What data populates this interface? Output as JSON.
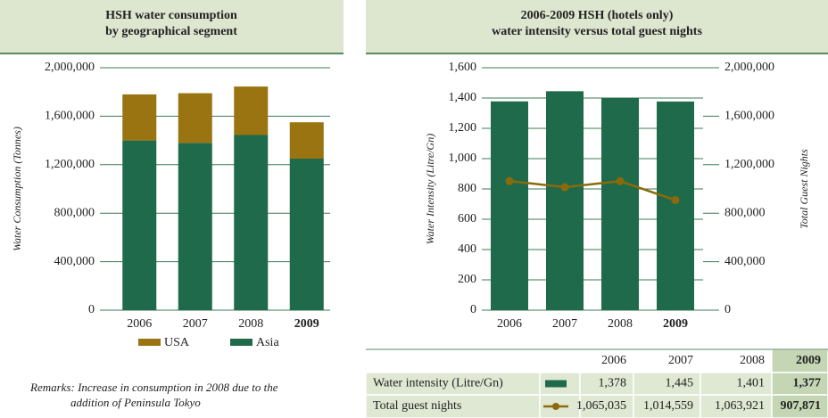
{
  "chart_data": [
    {
      "type": "stacked_bar",
      "title": [
        "HSH water consumption",
        "by geographical segment"
      ],
      "y_label": "Water Consumption (Tonnes)",
      "categories": [
        "2006",
        "2007",
        "2008",
        "2009"
      ],
      "highlight": 3,
      "series": [
        {
          "name": "Asia",
          "color": "#1f6a4a",
          "values": [
            1400000,
            1380000,
            1445000,
            1250000
          ]
        },
        {
          "name": "USA",
          "color": "#9a7410",
          "values": [
            380000,
            410000,
            400000,
            300000
          ]
        }
      ],
      "ylim": [
        0,
        2000000
      ],
      "yticks": [
        0,
        {
          "value": 400000,
          "label": "400,000"
        },
        {
          "value": 800000,
          "label": "800,000"
        },
        {
          "value": 1200000,
          "label": "1,200,000"
        },
        {
          "value": 1600000,
          "label": "1,600,000"
        },
        {
          "value": 2000000,
          "label": "2,000,000"
        }
      ],
      "grid": true,
      "remarks": [
        "Remarks: Increase in consumption in 2008 due to the",
        "addition of Peninsula Tokyo"
      ]
    },
    {
      "type": "bar_line",
      "title": [
        "2006-2009 HSH (hotels only)",
        "water intensity versus total guest nights"
      ],
      "y_label": "Water Intensity (Litre/Gn)",
      "y2_label": "Total Guest Nights",
      "categories": [
        "2006",
        "2007",
        "2008",
        "2009"
      ],
      "highlight": 3,
      "series": [
        {
          "name": "Water intensity (Litre/Gn)",
          "type": "bar",
          "color": "#1f6a4a",
          "values": [
            1378,
            1445,
            1401,
            1377
          ],
          "value_labels": [
            "1,378",
            "1,445",
            "1,401",
            "1,377"
          ]
        },
        {
          "name": "Total guest nights",
          "type": "line",
          "axis": "y2",
          "color": "#8a6a0c",
          "values": [
            1065035,
            1014559,
            1063921,
            907871
          ],
          "value_labels": [
            "1,065,035",
            "1,014,559",
            "1,063,921",
            "907,871"
          ]
        }
      ],
      "ylim": [
        0,
        1600
      ],
      "yticks": [
        0,
        200,
        400,
        600,
        800,
        {
          "value": 1000,
          "label": "1,000"
        },
        {
          "value": 1200,
          "label": "1,200"
        },
        {
          "value": 1400,
          "label": "1,400"
        },
        {
          "value": 1600,
          "label": "1,600"
        }
      ],
      "y2lim": [
        0,
        2000000
      ],
      "y2ticks": [
        0,
        {
          "value": 400000,
          "label": "400,000"
        },
        {
          "value": 800000,
          "label": "800,000"
        },
        {
          "value": 1200000,
          "label": "1,200,000"
        },
        {
          "value": 1600000,
          "label": "1,600,000"
        },
        {
          "value": 2000000,
          "label": "2,000,000"
        }
      ],
      "grid": true
    }
  ]
}
